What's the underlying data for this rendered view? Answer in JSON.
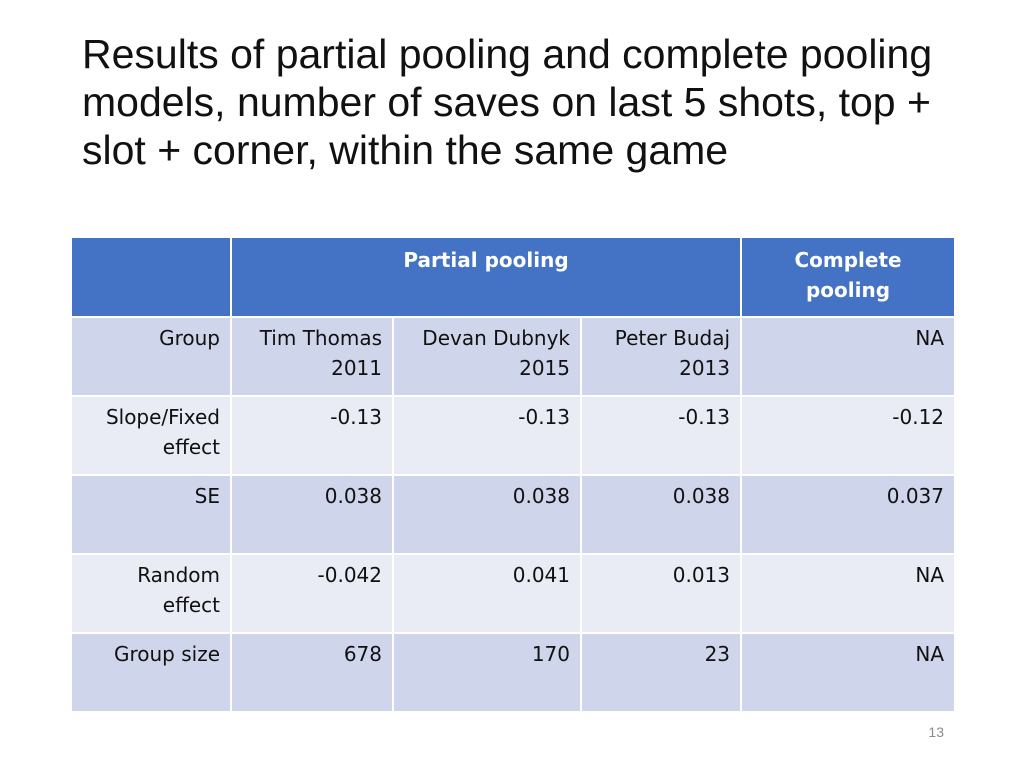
{
  "slide": {
    "title": "Results of partial pooling and complete pooling models, number of saves on last 5 shots, top + slot + corner, within the same game",
    "page_number": "13"
  },
  "table": {
    "header": {
      "corner": "",
      "partial_pooling": "Partial pooling",
      "complete_pooling": "Complete pooling"
    },
    "rows": [
      {
        "label": "Group",
        "values": [
          "Tim Thomas 2011",
          "Devan Dubnyk 2015",
          "Peter Budaj 2013",
          "NA"
        ]
      },
      {
        "label": "Slope/Fixed effect",
        "values": [
          "-0.13",
          "-0.13",
          "-0.13",
          "-0.12"
        ]
      },
      {
        "label": "SE",
        "values": [
          "0.038",
          "0.038",
          "0.038",
          "0.037"
        ]
      },
      {
        "label": "Random effect",
        "values": [
          "-0.042",
          "0.041",
          "0.013",
          "NA"
        ]
      },
      {
        "label": "Group size",
        "values": [
          "678",
          "170",
          "23",
          "NA"
        ]
      }
    ]
  },
  "colors": {
    "header_bg": "#4472c4",
    "row_band_dark": "#cfd5ea",
    "row_band_light": "#e9ebf5"
  }
}
